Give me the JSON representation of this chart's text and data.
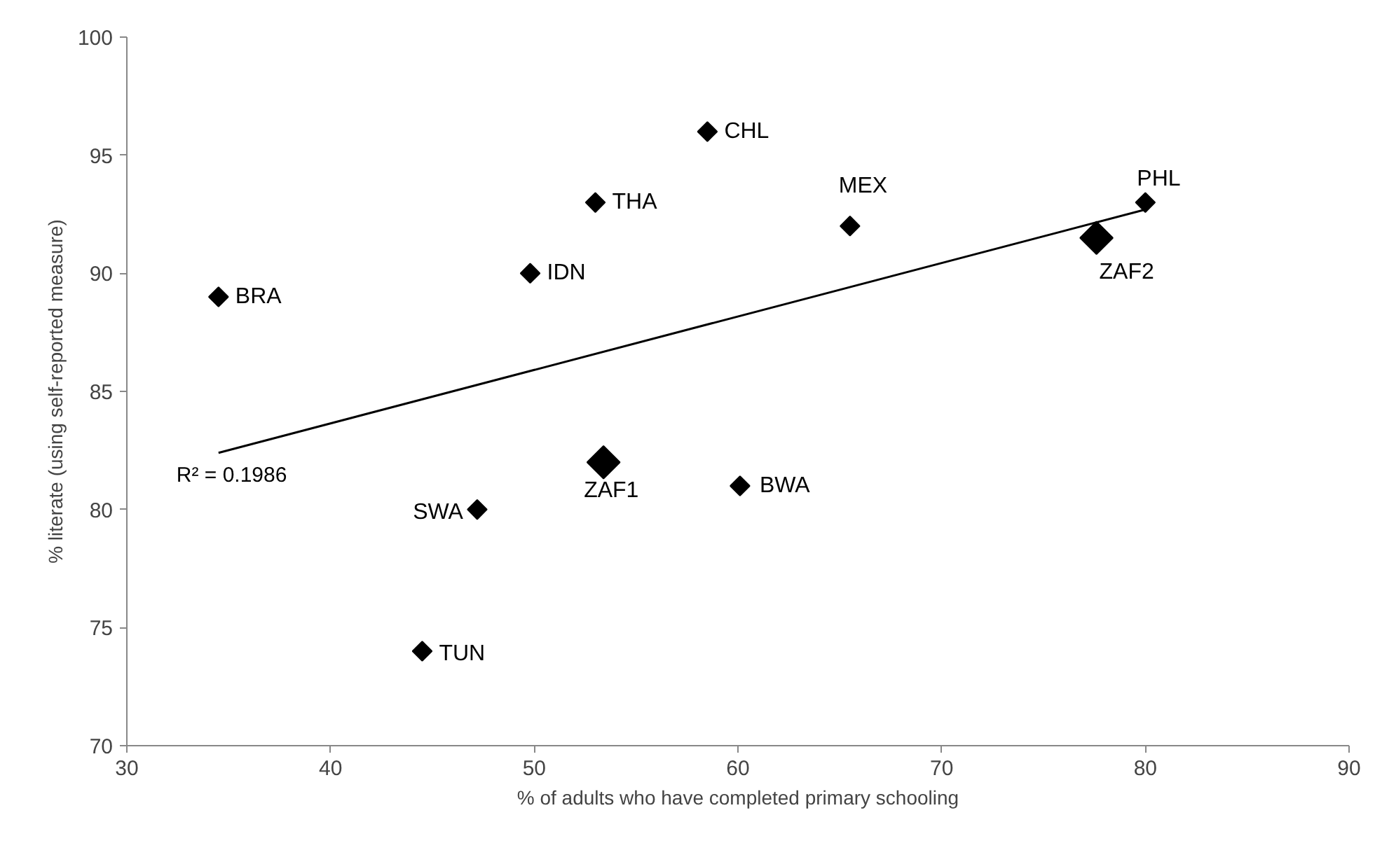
{
  "chart_data": {
    "type": "scatter",
    "xlabel": "% of adults who have completed primary schooling",
    "ylabel": "% literate (using self-reported measure)",
    "xlim": [
      30,
      90
    ],
    "xticks": [
      30,
      40,
      50,
      60,
      70,
      80,
      90
    ],
    "ylim": [
      70,
      100
    ],
    "yticks": [
      70,
      75,
      80,
      85,
      90,
      95,
      100
    ],
    "grid": false,
    "marker": "diamond",
    "series": [
      {
        "color": "#000000",
        "x": [
          34.5,
          49.8,
          53,
          58.5,
          47.2,
          44.5,
          60.1,
          65.5,
          80
        ],
        "values": [
          89,
          90,
          93,
          96,
          80,
          74,
          81,
          92,
          93
        ]
      },
      {
        "color": "#000000",
        "x": [
          53.4,
          77.6
        ],
        "values": [
          82,
          91.5
        ]
      },
      {
        "type": "line",
        "color": "#000000",
        "marker": "none",
        "x": [
          34.5,
          80
        ],
        "values": [
          82.4,
          92.7
        ]
      }
    ],
    "annotations": [
      {
        "text": "BRA",
        "x": 34.5,
        "y": 89
      },
      {
        "text": "IDN",
        "x": 49.8,
        "y": 90
      },
      {
        "text": "THA",
        "x": 53,
        "y": 93
      },
      {
        "text": "CHL",
        "x": 58.5,
        "y": 96
      },
      {
        "text": "SWA",
        "x": 47.2,
        "y": 80
      },
      {
        "text": "TUN",
        "x": 44.5,
        "y": 74
      },
      {
        "text": "BWA",
        "x": 60.1,
        "y": 81
      },
      {
        "text": "MEX",
        "x": 65.5,
        "y": 92
      },
      {
        "text": "PHL",
        "x": 80,
        "y": 93
      },
      {
        "text": "ZAF1",
        "x": 53.4,
        "y": 82
      },
      {
        "text": "ZAF2",
        "x": 77.6,
        "y": 91.5
      },
      {
        "text": "R² = 0.1986",
        "x": 34.5,
        "y": 82.4
      }
    ]
  }
}
